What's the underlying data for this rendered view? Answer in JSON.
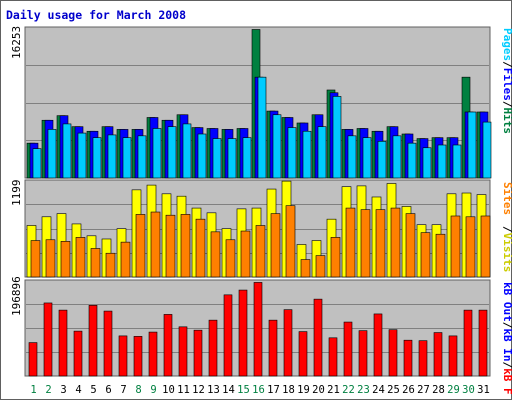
{
  "title": "Daily usage for March 2008",
  "colors": {
    "background": "#ffffff",
    "panel": "#c0c0c0",
    "border": "#606060",
    "title": "#0000cc",
    "gridline": "#808080",
    "pages": "#00ccff",
    "files": "#0000ff",
    "hits": "#008040",
    "visits": "#ffff00",
    "sites": "#ff8000",
    "kbin": "#ff0000",
    "kbout": "#0000ff",
    "day_weekday": "#000000",
    "day_weekend": "#008040"
  },
  "chart_data": [
    {
      "type": "bar",
      "panel": "top",
      "max_label": "16253",
      "ylim": [
        0,
        16253
      ],
      "categories": [
        "1",
        "2",
        "3",
        "4",
        "5",
        "6",
        "7",
        "8",
        "9",
        "10",
        "11",
        "12",
        "13",
        "14",
        "15",
        "16",
        "17",
        "18",
        "19",
        "20",
        "21",
        "22",
        "23",
        "24",
        "25",
        "26",
        "27",
        "28",
        "29",
        "30",
        "31"
      ],
      "series": [
        {
          "name": "Hits",
          "key": "hits",
          "values": [
            3800,
            6300,
            6800,
            5600,
            5100,
            5600,
            5300,
            5300,
            6600,
            6300,
            6900,
            5500,
            5400,
            5300,
            5400,
            16200,
            7300,
            6600,
            6000,
            6900,
            9600,
            5300,
            5400,
            5100,
            5600,
            4800,
            4300,
            4400,
            4400,
            11000,
            7200
          ]
        },
        {
          "name": "Files",
          "key": "files",
          "values": [
            3800,
            6300,
            6800,
            5600,
            5100,
            5600,
            5300,
            5300,
            6600,
            6300,
            6900,
            5500,
            5400,
            5300,
            5400,
            11000,
            7300,
            6600,
            6000,
            6900,
            9300,
            5300,
            5400,
            5100,
            5600,
            4800,
            4300,
            4400,
            4400,
            7200,
            7200
          ]
        },
        {
          "name": "Pages",
          "key": "pages",
          "values": [
            3200,
            5300,
            5900,
            4900,
            4400,
            4700,
            4400,
            4600,
            5400,
            5600,
            5900,
            4800,
            4300,
            4300,
            4400,
            11000,
            6900,
            5500,
            5100,
            5600,
            8900,
            4600,
            4400,
            4000,
            4600,
            3800,
            3300,
            3600,
            3600,
            7200,
            6100
          ]
        }
      ],
      "legend": [
        "Pages",
        "/",
        "Files",
        "/",
        "Hits"
      ]
    },
    {
      "type": "bar",
      "panel": "middle",
      "max_label": "1199",
      "ylim": [
        0,
        1199
      ],
      "series": [
        {
          "name": "Visits",
          "key": "visits",
          "values": [
            650,
            760,
            800,
            670,
            520,
            480,
            610,
            1100,
            1160,
            1050,
            1020,
            870,
            810,
            610,
            860,
            870,
            1110,
            1210,
            410,
            460,
            730,
            1140,
            1150,
            1010,
            1180,
            890,
            660,
            660,
            1050,
            1060,
            1040
          ]
        },
        {
          "name": "Sites",
          "key": "sites",
          "values": [
            460,
            470,
            450,
            500,
            360,
            300,
            440,
            790,
            820,
            780,
            790,
            730,
            570,
            470,
            580,
            650,
            800,
            900,
            220,
            270,
            500,
            870,
            850,
            850,
            870,
            800,
            560,
            540,
            770,
            760,
            770
          ]
        }
      ],
      "legend": [
        "Visits",
        "/",
        "Sites"
      ]
    },
    {
      "type": "bar",
      "panel": "bottom",
      "max_label": "196896",
      "ylim": [
        0,
        196896
      ],
      "series": [
        {
          "name": "KBytes In",
          "key": "kbin",
          "values": [
            70000,
            153000,
            138000,
            94000,
            148000,
            136000,
            84000,
            83000,
            92000,
            129000,
            103000,
            96000,
            117000,
            170000,
            180000,
            196000,
            117000,
            139000,
            93000,
            161000,
            80000,
            113000,
            95000,
            130000,
            97000,
            75000,
            74000,
            91000,
            84000,
            138000,
            138000
          ]
        },
        {
          "name": "KBytes Out",
          "key": "kbout",
          "values": []
        }
      ],
      "legend": [
        "kB F",
        "/",
        "kB In",
        "/",
        "kB Out"
      ]
    }
  ],
  "weekend_days": [
    1,
    2,
    8,
    9,
    15,
    16,
    22,
    23,
    29,
    30
  ]
}
